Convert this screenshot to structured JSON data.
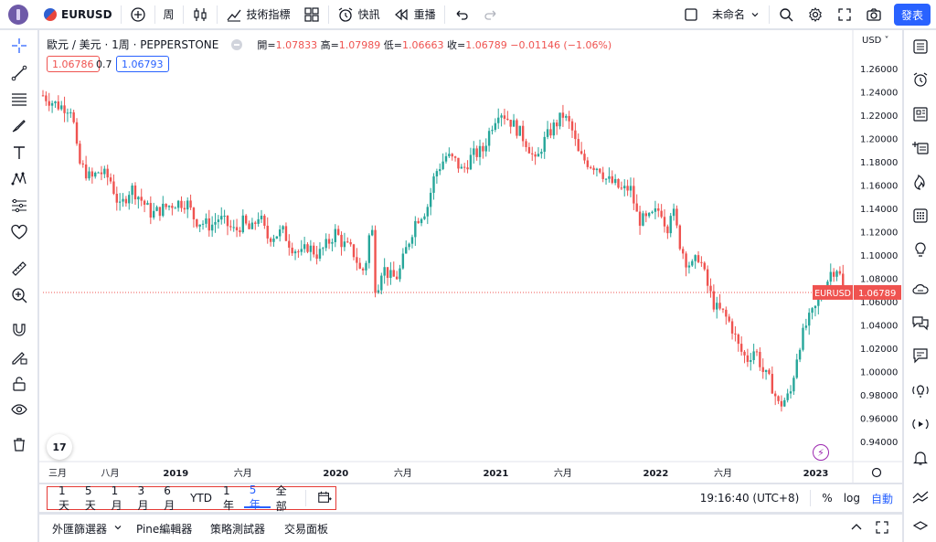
{
  "topbar": {
    "symbol": "EURUSD",
    "interval": "周",
    "indicators_label": "技術指標",
    "alert_label": "快訊",
    "replay_label": "重播",
    "layout_name": "未命名",
    "publish_label": "發表"
  },
  "legend": {
    "title": "歐元 / 美元 · 1周 · PEPPERSTONE",
    "open_label": "開=",
    "open": "1.07833",
    "high_label": "高=",
    "high": "1.07989",
    "low_label": "低=",
    "low": "1.06663",
    "close_label": "收=",
    "close": "1.06789",
    "change": "−0.01146 (−1.06%)",
    "bid": "1.06786",
    "spread": "0.7",
    "ask": "1.06793"
  },
  "chart_data": {
    "type": "candlestick",
    "symbol": "EURUSD",
    "currency": "USD",
    "last_price_label": "EURUSD",
    "last_price": "1.06789",
    "ylim": [
      0.93,
      1.27
    ],
    "y_ticks": [
      "1.26000",
      "1.24000",
      "1.22000",
      "1.20000",
      "1.18000",
      "1.16000",
      "1.14000",
      "1.12000",
      "1.10000",
      "1.08000",
      "1.06000",
      "1.04000",
      "1.02000",
      "1.00000",
      "0.98000",
      "0.96000",
      "0.94000"
    ],
    "x_ticks": [
      {
        "label": "三月",
        "x": 0.0
      },
      {
        "label": "八月",
        "x": 0.42
      },
      {
        "label": "2019",
        "x": 0.83
      },
      {
        "label": "六月",
        "x": 1.25
      },
      {
        "label": "2020",
        "x": 1.83
      },
      {
        "label": "六月",
        "x": 2.25
      },
      {
        "label": "2021",
        "x": 2.83
      },
      {
        "label": "六月",
        "x": 3.25
      },
      {
        "label": "2022",
        "x": 3.83
      },
      {
        "label": "六月",
        "x": 4.25
      },
      {
        "label": "2023",
        "x": 4.83
      }
    ],
    "x_unit": "years since 2018-03",
    "path": [
      [
        0.0,
        1.237
      ],
      [
        0.05,
        1.232
      ],
      [
        0.1,
        1.228
      ],
      [
        0.18,
        1.226
      ],
      [
        0.22,
        1.18
      ],
      [
        0.3,
        1.165
      ],
      [
        0.35,
        1.172
      ],
      [
        0.42,
        1.165
      ],
      [
        0.48,
        1.14
      ],
      [
        0.55,
        1.158
      ],
      [
        0.6,
        1.15
      ],
      [
        0.68,
        1.135
      ],
      [
        0.75,
        1.14
      ],
      [
        0.83,
        1.145
      ],
      [
        0.9,
        1.145
      ],
      [
        0.95,
        1.13
      ],
      [
        1.05,
        1.125
      ],
      [
        1.1,
        1.132
      ],
      [
        1.2,
        1.12
      ],
      [
        1.25,
        1.128
      ],
      [
        1.3,
        1.12
      ],
      [
        1.35,
        1.135
      ],
      [
        1.4,
        1.115
      ],
      [
        1.5,
        1.12
      ],
      [
        1.55,
        1.108
      ],
      [
        1.62,
        1.1
      ],
      [
        1.65,
        1.108
      ],
      [
        1.72,
        1.1
      ],
      [
        1.78,
        1.11
      ],
      [
        1.83,
        1.12
      ],
      [
        1.87,
        1.11
      ],
      [
        1.92,
        1.105
      ],
      [
        1.95,
        1.1
      ],
      [
        1.99,
        1.083
      ],
      [
        2.03,
        1.1
      ],
      [
        2.05,
        1.138
      ],
      [
        2.08,
        1.066
      ],
      [
        2.12,
        1.09
      ],
      [
        2.18,
        1.08
      ],
      [
        2.22,
        1.082
      ],
      [
        2.27,
        1.105
      ],
      [
        2.33,
        1.13
      ],
      [
        2.4,
        1.14
      ],
      [
        2.45,
        1.17
      ],
      [
        2.52,
        1.185
      ],
      [
        2.58,
        1.18
      ],
      [
        2.62,
        1.172
      ],
      [
        2.68,
        1.185
      ],
      [
        2.75,
        1.19
      ],
      [
        2.8,
        1.21
      ],
      [
        2.85,
        1.225
      ],
      [
        2.92,
        1.215
      ],
      [
        2.98,
        1.205
      ],
      [
        3.03,
        1.195
      ],
      [
        3.08,
        1.178
      ],
      [
        3.12,
        1.195
      ],
      [
        3.18,
        1.208
      ],
      [
        3.25,
        1.22
      ],
      [
        3.3,
        1.21
      ],
      [
        3.35,
        1.185
      ],
      [
        3.42,
        1.178
      ],
      [
        3.48,
        1.175
      ],
      [
        3.52,
        1.165
      ],
      [
        3.58,
        1.16
      ],
      [
        3.62,
        1.155
      ],
      [
        3.67,
        1.158
      ],
      [
        3.72,
        1.13
      ],
      [
        3.78,
        1.13
      ],
      [
        3.82,
        1.135
      ],
      [
        3.86,
        1.14
      ],
      [
        3.9,
        1.122
      ],
      [
        3.93,
        1.143
      ],
      [
        3.98,
        1.11
      ],
      [
        4.02,
        1.095
      ],
      [
        4.06,
        1.09
      ],
      [
        4.1,
        1.1
      ],
      [
        4.15,
        1.075
      ],
      [
        4.2,
        1.055
      ],
      [
        4.25,
        1.05
      ],
      [
        4.3,
        1.04
      ],
      [
        4.35,
        1.02
      ],
      [
        4.4,
        1.01
      ],
      [
        4.45,
        1.02
      ],
      [
        4.5,
        1.0
      ],
      [
        4.55,
        0.99
      ],
      [
        4.6,
        0.97
      ],
      [
        4.63,
        0.975
      ],
      [
        4.67,
        0.98
      ],
      [
        4.72,
        1.02
      ],
      [
        4.77,
        1.04
      ],
      [
        4.83,
        1.055
      ],
      [
        4.88,
        1.07
      ],
      [
        4.92,
        1.085
      ],
      [
        4.97,
        1.09
      ],
      [
        5.0,
        1.068
      ]
    ]
  },
  "time_axis": {
    "time": "19:16:40 (UTC+8)",
    "pct": "%",
    "log": "log",
    "auto": "自動"
  },
  "ranges": [
    {
      "label": "1天",
      "active": false
    },
    {
      "label": "5天",
      "active": false
    },
    {
      "label": "1月",
      "active": false
    },
    {
      "label": "3月",
      "active": false
    },
    {
      "label": "6月",
      "active": false
    },
    {
      "label": "YTD",
      "active": false
    },
    {
      "label": "1年",
      "active": false
    },
    {
      "label": "5年",
      "active": true
    },
    {
      "label": "全部",
      "active": false
    }
  ],
  "panel_tabs": [
    "外匯篩選器",
    "Pine編輯器",
    "策略測試器",
    "交易面板"
  ],
  "colors": {
    "up": "#26a69a",
    "down": "#ef5350",
    "accent": "#2962ff",
    "highlight": "#e53935"
  }
}
